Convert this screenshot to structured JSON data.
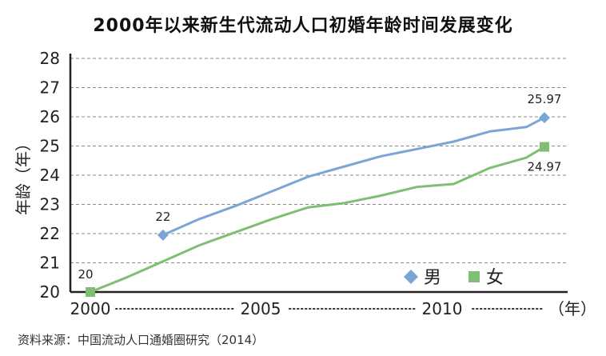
{
  "chart_data": {
    "type": "line",
    "title": "2000年以来新生代流动人口初婚年龄时间发展变化",
    "ylabel": "年龄（年）",
    "xlabel": "（年）",
    "x_ticks": [
      "2000",
      "2005",
      "2010"
    ],
    "y_ticks": [
      "20",
      "21",
      "22",
      "23",
      "24",
      "25",
      "26",
      "27",
      "28"
    ],
    "xlim": [
      2000,
      2012.5
    ],
    "ylim": [
      20,
      28
    ],
    "grid": "horizontal dashed",
    "legend_position": "bottom-right",
    "series": [
      {
        "name": "男",
        "color": "#7aa6d6",
        "marker": "diamond",
        "x": [
          2002,
          2003,
          2004,
          2005,
          2006,
          2007,
          2008,
          2009,
          2010,
          2011,
          2012,
          2012.5
        ],
        "y": [
          21.95,
          22.5,
          22.95,
          23.45,
          23.95,
          24.3,
          24.65,
          24.9,
          25.15,
          25.5,
          25.65,
          25.97
        ],
        "point_labels": [
          {
            "x": 2002,
            "y": 21.95,
            "text": "22"
          },
          {
            "x": 2012.5,
            "y": 25.97,
            "text": "25.97"
          }
        ]
      },
      {
        "name": "女",
        "color": "#7fbf73",
        "marker": "square",
        "x": [
          2000,
          2001,
          2002,
          2003,
          2004,
          2005,
          2006,
          2007,
          2008,
          2009,
          2010,
          2011,
          2012,
          2012.5
        ],
        "y": [
          20.0,
          20.5,
          21.05,
          21.6,
          22.05,
          22.5,
          22.9,
          23.05,
          23.3,
          23.6,
          23.7,
          24.25,
          24.6,
          24.97
        ],
        "point_labels": [
          {
            "x": 2000,
            "y": 20.0,
            "text": "20"
          },
          {
            "x": 2012.5,
            "y": 24.97,
            "text": "24.97"
          }
        ]
      }
    ]
  },
  "source": "资料来源：中国流动人口通婚圈研究（2014）"
}
